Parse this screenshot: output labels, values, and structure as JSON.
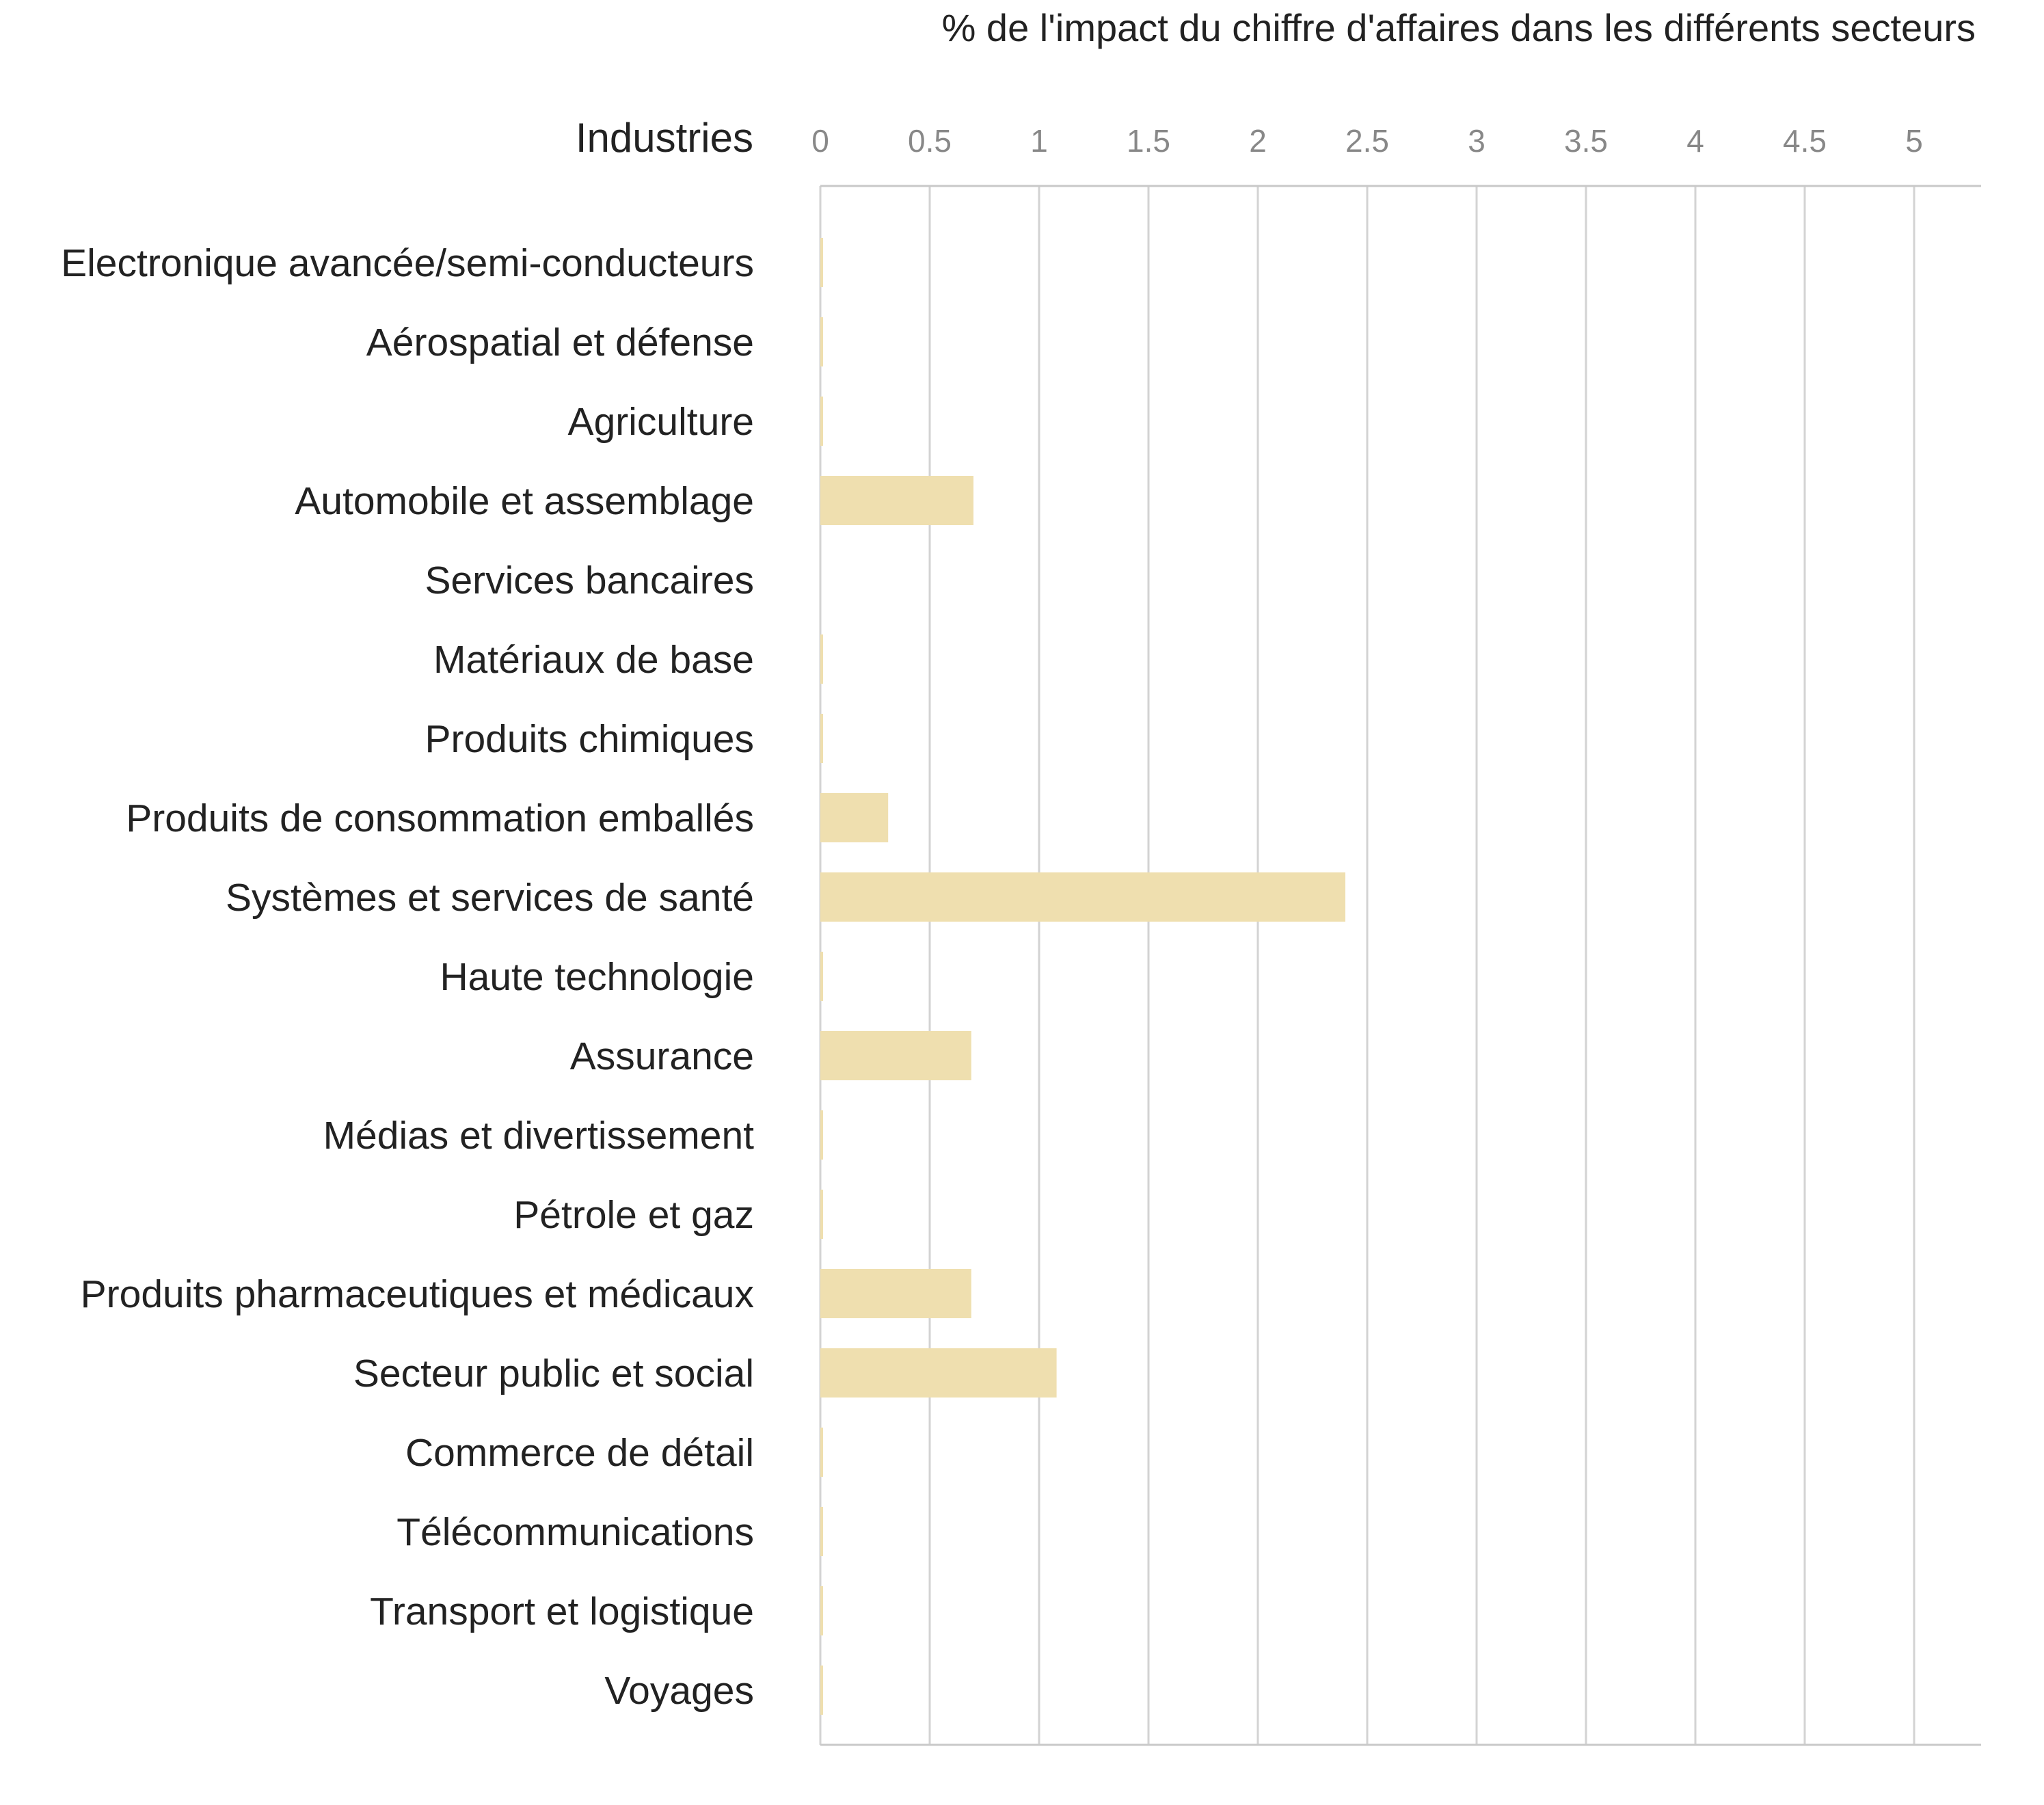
{
  "chart_data": {
    "type": "bar",
    "orientation": "horizontal",
    "title": "% de l'impact du chiffre d'affaires dans les différents secteurs",
    "category_header": "Industries",
    "categories": [
      "Electronique avancée/semi-conducteurs",
      "Aérospatial et défense",
      "Agriculture",
      "Automobile et assemblage",
      "Services bancaires",
      "Matériaux de base",
      "Produits chimiques",
      "Produits de consommation emballés",
      "Systèmes et services de santé",
      "Haute technologie",
      "Assurance",
      "Médias et divertissement",
      "Pétrole et gaz",
      "Produits pharmaceutiques et médicaux",
      "Secteur public et social",
      "Commerce de détail",
      "Télécommunications",
      "Transport et logistique",
      "Voyages"
    ],
    "values": [
      0.01,
      0.01,
      0.01,
      0.7,
      0,
      0.01,
      0.01,
      0.31,
      2.4,
      0.01,
      0.69,
      0.01,
      0.01,
      0.69,
      1.08,
      0.01,
      0.01,
      0.01,
      0.01
    ],
    "xticks": [
      "0",
      "0.5",
      "1",
      "1.5",
      "2",
      "2.5",
      "3",
      "3.5",
      "4",
      "4.5",
      "5"
    ],
    "xlim": [
      0,
      5.3
    ],
    "xlabel": "",
    "ylabel": "Industries",
    "grid": true,
    "legend": "none",
    "bar_color": "#efdfaf",
    "axis_position": "top"
  }
}
